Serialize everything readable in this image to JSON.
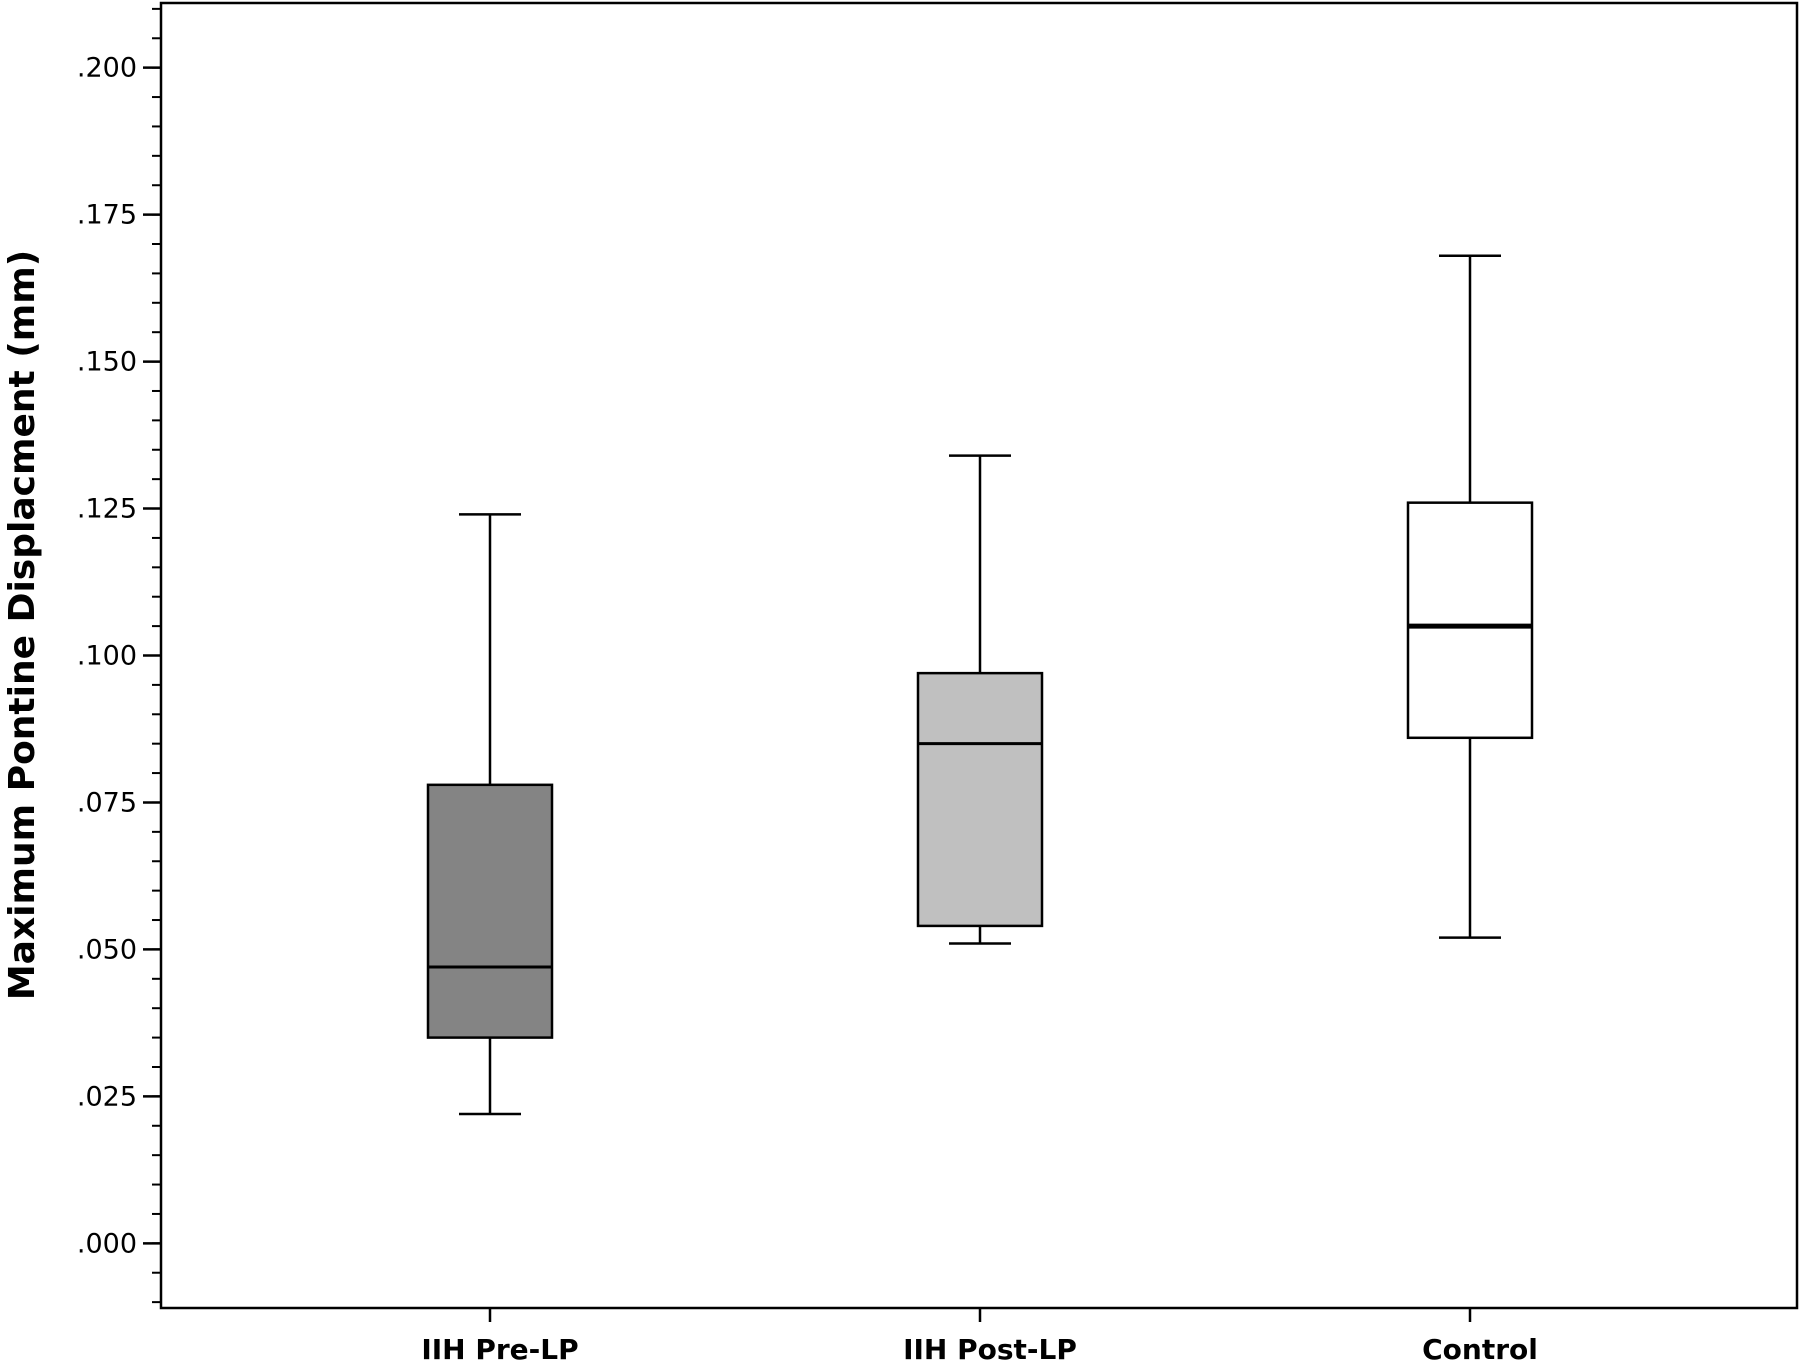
{
  "chart_data": {
    "type": "box",
    "title": "",
    "xlabel": "",
    "ylabel": "Maximum Pontine Displacment (mm)",
    "ylim": [
      -0.011,
      0.211
    ],
    "yticks": [
      {
        "value": 0.0,
        "label": ".000"
      },
      {
        "value": 0.025,
        "label": ".025"
      },
      {
        "value": 0.05,
        "label": ".050"
      },
      {
        "value": 0.075,
        "label": ".075"
      },
      {
        "value": 0.1,
        "label": ".100"
      },
      {
        "value": 0.125,
        "label": ".125"
      },
      {
        "value": 0.15,
        "label": ".150"
      },
      {
        "value": 0.175,
        "label": ".175"
      },
      {
        "value": 0.2,
        "label": ".200"
      }
    ],
    "minor_tick_step": 0.005,
    "grid": false,
    "categories": [
      "IIH Pre-LP",
      "IIH Post-LP",
      "Control"
    ],
    "boxes": [
      {
        "category": "IIH Pre-LP",
        "whisker_low": 0.022,
        "q1": 0.035,
        "median": 0.047,
        "q3": 0.078,
        "whisker_high": 0.124,
        "fill": "#848484"
      },
      {
        "category": "IIH Post-LP",
        "whisker_low": 0.051,
        "q1": 0.054,
        "median": 0.085,
        "q3": 0.097,
        "whisker_high": 0.134,
        "fill": "#c0c0c0"
      },
      {
        "category": "Control",
        "whisker_low": 0.052,
        "q1": 0.086,
        "median": 0.105,
        "q3": 0.126,
        "whisker_high": 0.168,
        "fill": "#ffffff"
      }
    ]
  }
}
